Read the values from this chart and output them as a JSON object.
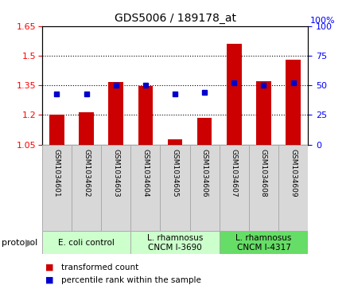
{
  "title": "GDS5006 / 189178_at",
  "samples": [
    "GSM1034601",
    "GSM1034602",
    "GSM1034603",
    "GSM1034604",
    "GSM1034605",
    "GSM1034606",
    "GSM1034607",
    "GSM1034608",
    "GSM1034609"
  ],
  "transformed_count": [
    1.2,
    1.215,
    1.365,
    1.345,
    1.075,
    1.185,
    1.56,
    1.37,
    1.48
  ],
  "percentile_rank": [
    43,
    43,
    50,
    50,
    43,
    44,
    52,
    50,
    52
  ],
  "ylim_left": [
    1.05,
    1.65
  ],
  "ylim_right": [
    0,
    100
  ],
  "yticks_left": [
    1.05,
    1.2,
    1.35,
    1.5,
    1.65
  ],
  "yticks_right": [
    0,
    25,
    50,
    75,
    100
  ],
  "bar_color": "#cc0000",
  "dot_color": "#0000cc",
  "groups": [
    {
      "label": "E. coli control",
      "samples": [
        0,
        1,
        2
      ],
      "color": "#ccffcc"
    },
    {
      "label": "L. rhamnosus\nCNCM I-3690",
      "samples": [
        3,
        4,
        5
      ],
      "color": "#ccffcc"
    },
    {
      "label": "L. rhamnosus\nCNCM I-4317",
      "samples": [
        6,
        7,
        8
      ],
      "color": "#66dd66"
    }
  ],
  "legend_bar_label": "transformed count",
  "legend_dot_label": "percentile rank within the sample",
  "protocol_label": "protocol"
}
